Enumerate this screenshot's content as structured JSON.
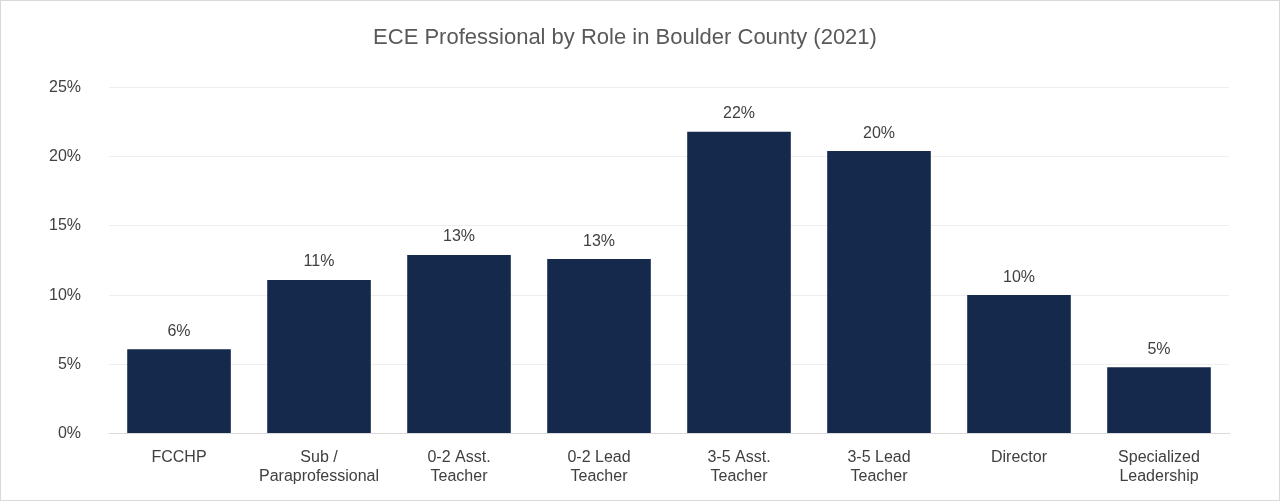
{
  "chart_data": {
    "type": "bar",
    "title": "ECE Professional by Role in Boulder County (2021)",
    "categories": [
      "FCCHP",
      [
        "Sub /",
        "Paraprofessional"
      ],
      [
        "0-2 Asst.",
        "Teacher"
      ],
      [
        "0-2 Lead",
        "Teacher"
      ],
      [
        "3-5 Asst.",
        "Teacher"
      ],
      [
        "3-5 Lead",
        "Teacher"
      ],
      "Director",
      [
        "Specialized",
        "Leadership"
      ]
    ],
    "values": [
      6.1,
      11.1,
      12.9,
      12.6,
      21.8,
      20.4,
      10.0,
      4.8
    ],
    "value_labels": [
      "6%",
      "11%",
      "13%",
      "13%",
      "22%",
      "20%",
      "10%",
      "5%"
    ],
    "color": "#14294b",
    "ylim": [
      0,
      25
    ],
    "yticks": [
      {
        "value": 0,
        "label": "0%"
      },
      {
        "value": 5,
        "label": "5%"
      },
      {
        "value": 10,
        "label": "10%"
      },
      {
        "value": 15,
        "label": "15%"
      },
      {
        "value": 20,
        "label": "20%"
      },
      {
        "value": 25,
        "label": "25%"
      }
    ],
    "grid": true,
    "data_labels": true
  }
}
